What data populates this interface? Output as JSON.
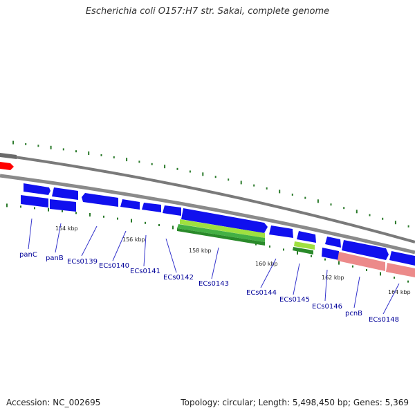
{
  "title": "Escherichia coli O157:H7 str. Sakai, complete genome",
  "footer": {
    "accession": "Accession: NC_002695",
    "summary": "Topology: circular; Length: 5,498,450 bp; Genes: 5,369"
  },
  "colors": {
    "cds_blue": "#1010ee",
    "gene_red": "#ff0000",
    "gray_track": "#7a7a7a",
    "pseudo_pink": "#ec8a8a",
    "rna_light_green": "#9fe040",
    "rna_dark_green": "#2a8a2a",
    "tick_green": "#2a7a2a",
    "label_blue": "#000099"
  },
  "ticks": [
    "154 kbp",
    "156 kbp",
    "158 kbp",
    "160 kbp",
    "162 kbp",
    "164 kbp"
  ],
  "gene_labels": [
    "panC",
    "panB",
    "ECs0139",
    "ECs0140",
    "ECs0141",
    "ECs0142",
    "ECs0143",
    "ECs0144",
    "ECs0145",
    "ECs0146",
    "pcnB",
    "ECs0148"
  ]
}
